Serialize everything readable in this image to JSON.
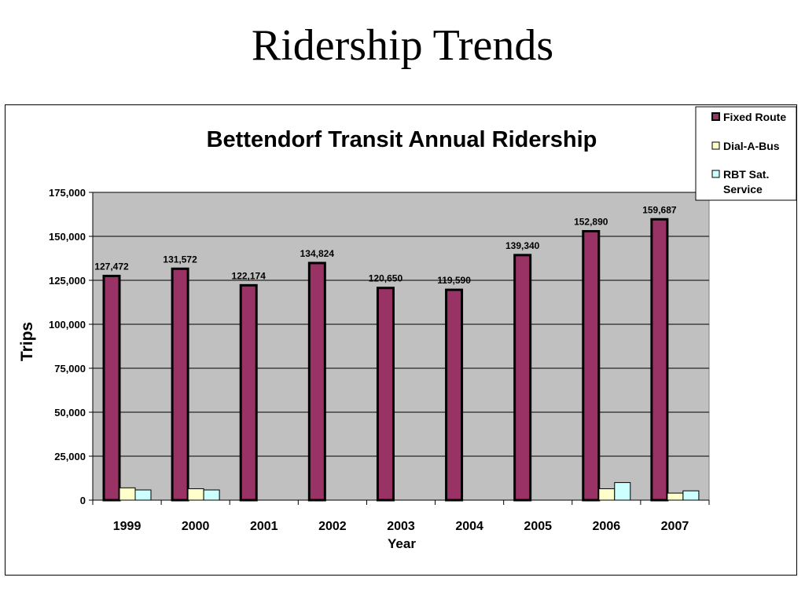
{
  "slide": {
    "title": "Ridership Trends"
  },
  "chart_data": {
    "type": "bar",
    "title": "Bettendorf Transit Annual Ridership",
    "xlabel": "Year",
    "ylabel": "Trips",
    "categories": [
      "1999",
      "2000",
      "2001",
      "2002",
      "2003",
      "2004",
      "2005",
      "2006",
      "2007"
    ],
    "ylim": [
      0,
      175000
    ],
    "yticks": [
      0,
      25000,
      50000,
      75000,
      100000,
      125000,
      150000,
      175000
    ],
    "ytick_labels": [
      "0",
      "25,000",
      "50,000",
      "75,000",
      "100,000",
      "125,000",
      "150,000",
      "175,000"
    ],
    "grid": true,
    "legend_position": "top-right",
    "series": [
      {
        "name": "Fixed Route",
        "color": "#993366",
        "values": [
          127472,
          131572,
          122174,
          134824,
          120650,
          119590,
          139340,
          152890,
          159687
        ],
        "data_labels": [
          "127,472",
          "131,572",
          "122,174",
          "134,824",
          "120,650",
          "119,590",
          "139,340",
          "152,890",
          "159,687"
        ]
      },
      {
        "name": "Dial-A-Bus",
        "color": "#FFFFCC",
        "values": [
          7000,
          6500,
          0,
          0,
          0,
          0,
          0,
          6500,
          4000
        ]
      },
      {
        "name": "RBT Sat.\nService",
        "color": "#CCFFFF",
        "values": [
          5800,
          5800,
          0,
          0,
          0,
          0,
          0,
          10000,
          5300
        ]
      }
    ],
    "plot_background": "#C0C0C0"
  }
}
